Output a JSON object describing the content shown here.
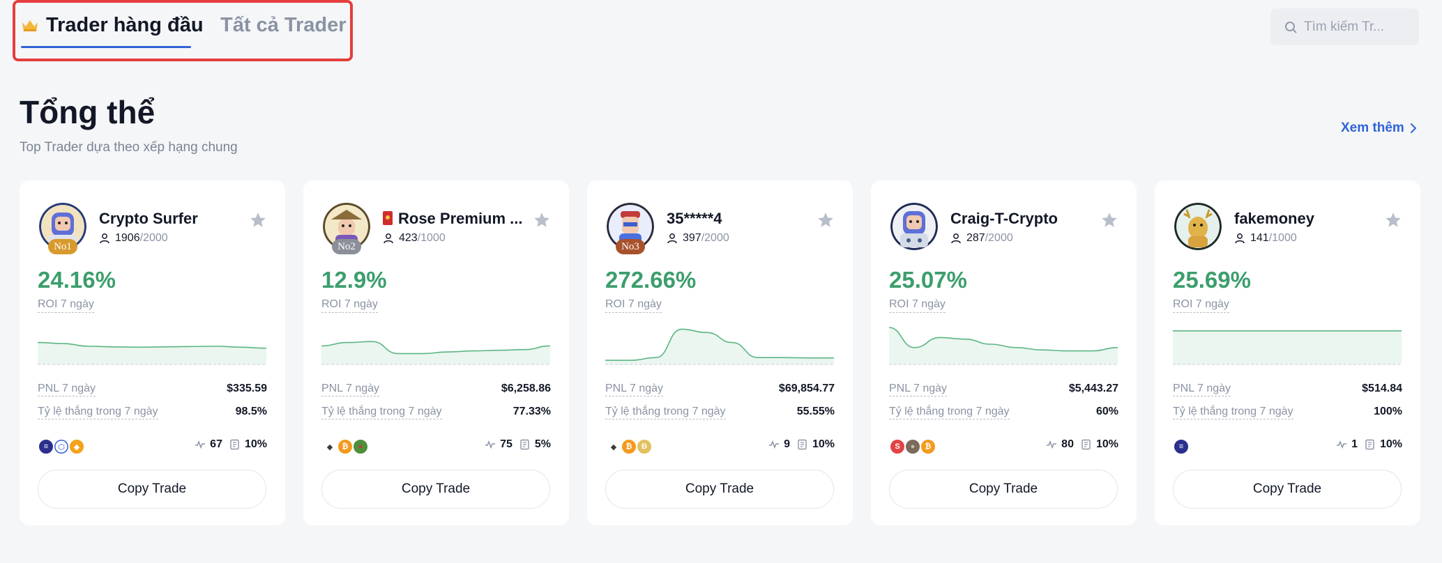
{
  "tabs": {
    "top": "Trader hàng đầu",
    "all": "Tất cả Trader"
  },
  "search": {
    "placeholder": "Tìm kiếm Tr..."
  },
  "section": {
    "title": "Tổng thể",
    "subtitle": "Top Trader dựa theo xếp hạng chung",
    "see_more": "Xem thêm"
  },
  "labels": {
    "roi": "ROI 7 ngày",
    "pnl": "PNL 7 ngày",
    "win_rate": "Tỷ lệ thắng trong 7 ngày",
    "copy": "Copy Trade"
  },
  "colors": {
    "accent": "#2f63d6",
    "positive": "#3c9e6c",
    "highlight_box": "#e53e3e"
  },
  "traders": [
    {
      "rank_badge": "No1",
      "name": "Crypto Surfer",
      "followers": "1906",
      "max_followers": "/2000",
      "roi": "24.16%",
      "pnl": "$335.59",
      "win_rate": "98.5%",
      "trades": "67",
      "share": "10%",
      "coins": [
        "solana-icon",
        "chainlink-icon",
        "shib-icon"
      ],
      "spark": [
        0.55,
        0.52,
        0.44,
        0.42,
        0.41,
        0.42,
        0.43,
        0.44,
        0.41,
        0.38
      ]
    },
    {
      "rank_badge": "No2",
      "name": "Rose Premium ...",
      "followers": "423",
      "max_followers": "/1000",
      "roi": "12.9%",
      "pnl": "$6,258.86",
      "win_rate": "77.33%",
      "trades": "75",
      "share": "5%",
      "coins": [
        "ethereum-icon",
        "bitcoin-icon",
        "pepe-icon"
      ],
      "spark": [
        0.45,
        0.55,
        0.58,
        0.22,
        0.22,
        0.27,
        0.3,
        0.32,
        0.34,
        0.45
      ]
    },
    {
      "rank_badge": "No3",
      "name": "35*****4",
      "followers": "397",
      "max_followers": "/2000",
      "roi": "272.66%",
      "pnl": "$69,854.77",
      "win_rate": "55.55%",
      "trades": "9",
      "share": "10%",
      "coins": [
        "ethereum-icon",
        "bitcoin-icon",
        "dogecoin-icon"
      ],
      "spark": [
        0.02,
        0.02,
        0.1,
        0.95,
        0.85,
        0.55,
        0.1,
        0.1,
        0.09,
        0.09
      ]
    },
    {
      "rank_badge": "",
      "name": "Craig-T-Crypto",
      "followers": "287",
      "max_followers": "/2000",
      "roi": "25.07%",
      "pnl": "$5,443.27",
      "win_rate": "60%",
      "trades": "80",
      "share": "10%",
      "coins": [
        "sui-icon",
        "avatar-coin-icon",
        "bitcoin-icon"
      ],
      "spark": [
        1.0,
        0.4,
        0.7,
        0.65,
        0.5,
        0.4,
        0.33,
        0.3,
        0.3,
        0.4
      ]
    },
    {
      "rank_badge": "",
      "name": "fakemoney",
      "followers": "141",
      "max_followers": "/1000",
      "roi": "25.69%",
      "pnl": "$514.84",
      "win_rate": "100%",
      "trades": "1",
      "share": "10%",
      "coins": [
        "solana-icon"
      ],
      "spark": [
        0.9,
        0.9,
        0.9,
        0.9,
        0.9,
        0.9,
        0.9,
        0.9,
        0.9,
        0.9
      ]
    }
  ]
}
